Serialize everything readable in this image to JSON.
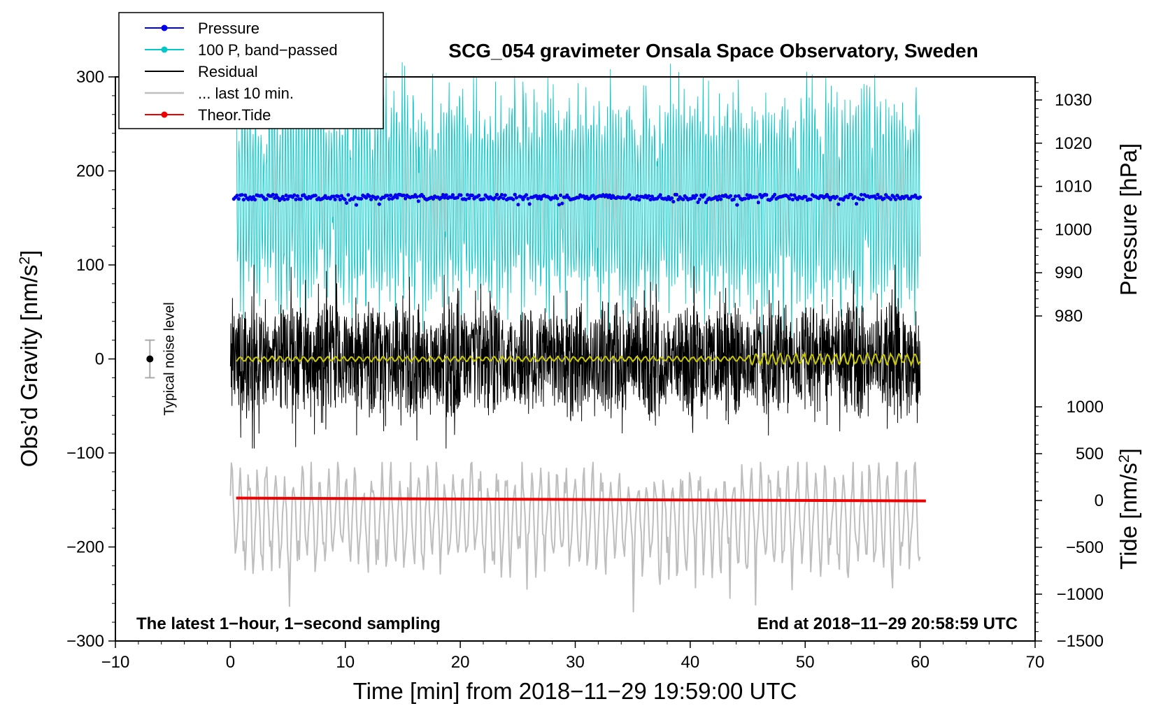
{
  "chart_data": {
    "type": "line",
    "title": "SCG_054 gravimeter Onsala Space Observatory, Sweden",
    "xlabel": "Time [min] from 2018−11−29 19:59:00 UTC",
    "ylabel_main": "Obs’d Gravity [nm/s",
    "ylabel_sup": "2",
    "ylabel_close": "]",
    "ylabel_pressure": "Pressure [hPa]",
    "ylabel_tide": "Tide [nm/s",
    "ylabel_tide_sup": "2",
    "ylabel_tide_close": "]",
    "xlim": [
      -10,
      70
    ],
    "ylim": [
      -300,
      300
    ],
    "x_ticks": [
      -10,
      0,
      10,
      20,
      30,
      40,
      50,
      60,
      70
    ],
    "x_tick_labels": [
      "−10",
      "0",
      "10",
      "20",
      "30",
      "40",
      "50",
      "60",
      "70"
    ],
    "y_ticks": [
      -300,
      -200,
      -100,
      0,
      100,
      200,
      300
    ],
    "y_tick_labels": [
      "−300",
      "−200",
      "−100",
      "0",
      "100",
      "200",
      "300"
    ],
    "pressure_axis": {
      "range": [
        1030,
        980
      ],
      "ticks": [
        1030,
        1020,
        1010,
        1000,
        990,
        980
      ],
      "tick_labels": [
        "1030",
        "1020",
        "1010",
        "1000",
        "990",
        "980"
      ]
    },
    "tide_axis": {
      "range": [
        -1500,
        1000
      ],
      "ticks": [
        1000,
        500,
        0,
        -500,
        -1000,
        -1500
      ],
      "tick_labels": [
        "1000",
        "500",
        "0",
        "−500",
        "−1000",
        "−1500"
      ]
    },
    "legend": [
      {
        "label": "Pressure",
        "color": "#0000ee",
        "marker": true
      },
      {
        "label": "100 P, band−passed",
        "color": "#00c8c8",
        "marker": true
      },
      {
        "label": "Residual",
        "color": "#000000",
        "marker": false
      },
      {
        "label": "... last 10 min.",
        "color": "#bebebe",
        "marker": false
      },
      {
        "label": "Theor.Tide",
        "color": "#ee0000",
        "marker": true
      }
    ],
    "series": [
      {
        "name": "Pressure",
        "color": "#0000ee",
        "x_range": [
          0.3,
          60
        ],
        "level_hPa": 1007.5,
        "spread_hPa": 0.6
      },
      {
        "name": "100 P, band−passed",
        "color": "#00c8c8",
        "x_range": [
          0.5,
          60
        ],
        "center": 170,
        "amplitude": 110
      },
      {
        "name": "Residual",
        "color": "#000000",
        "x_range": [
          0,
          60
        ],
        "center": 0,
        "amplitude": 60
      },
      {
        "name": "Residual smoothed",
        "color": "#c8c800",
        "x_range": [
          0.5,
          60
        ],
        "center": 0,
        "amplitude": 3
      },
      {
        "name": "... last 10 min.",
        "color": "#bebebe",
        "x_range": [
          0,
          60
        ],
        "center": -190,
        "amplitude": 50
      },
      {
        "name": "Theor.Tide",
        "color": "#ee0000",
        "x": [
          0.5,
          60.5
        ],
        "y": [
          -148,
          -151
        ]
      }
    ],
    "noise_level": {
      "label": "Typical noise level",
      "x": -7,
      "center": 0,
      "half_range": 20
    },
    "annotation_left": "The latest 1−hour, 1−second sampling",
    "annotation_right": "End at 2018−11−29 20:58:59 UTC"
  }
}
